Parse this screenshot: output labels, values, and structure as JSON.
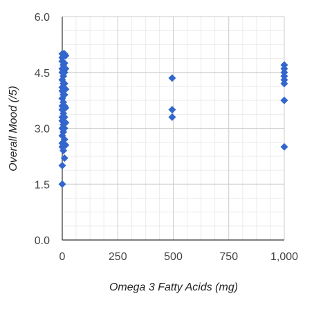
{
  "chart_data": {
    "type": "scatter",
    "title": "",
    "xlabel": "Omega 3 Fatty Acids (mg)",
    "ylabel": "Overall Mood (/5)",
    "xlim": [
      0,
      1000
    ],
    "ylim": [
      0,
      6
    ],
    "x_ticks": [
      "0",
      "250",
      "500",
      "750",
      "1,000"
    ],
    "y_ticks": [
      "0.0",
      "1.5",
      "3.0",
      "4.5",
      "6.0"
    ],
    "grid": true,
    "legend": "none",
    "colors": {
      "marker": "#3366cc",
      "major_grid": "#cccccc",
      "minor_grid": "#ebebeb",
      "axis": "#333333"
    },
    "series": [
      {
        "points": [
          [
            0,
            1.5
          ],
          [
            0,
            2.0
          ],
          [
            0,
            2.5
          ],
          [
            0,
            2.6
          ],
          [
            0,
            2.8
          ],
          [
            0,
            3.0
          ],
          [
            0,
            3.2
          ],
          [
            0,
            3.3
          ],
          [
            0,
            3.5
          ],
          [
            0,
            3.6
          ],
          [
            0,
            3.8
          ],
          [
            0,
            4.0
          ],
          [
            0,
            4.1
          ],
          [
            0,
            4.3
          ],
          [
            0,
            4.5
          ],
          [
            0,
            4.6
          ],
          [
            0,
            4.8
          ],
          [
            0,
            4.9
          ],
          [
            0,
            5.0
          ],
          [
            5,
            2.4
          ],
          [
            5,
            2.9
          ],
          [
            5,
            3.1
          ],
          [
            5,
            3.4
          ],
          [
            5,
            3.7
          ],
          [
            5,
            3.9
          ],
          [
            5,
            4.2
          ],
          [
            5,
            4.4
          ],
          [
            5,
            4.7
          ],
          [
            5,
            5.0
          ],
          [
            10,
            2.2
          ],
          [
            10,
            2.7
          ],
          [
            10,
            3.0
          ],
          [
            10,
            3.3
          ],
          [
            10,
            3.6
          ],
          [
            10,
            3.9
          ],
          [
            10,
            4.2
          ],
          [
            10,
            4.5
          ],
          [
            10,
            4.75
          ],
          [
            10,
            5.0
          ],
          [
            15,
            2.55
          ],
          [
            15,
            3.15
          ],
          [
            15,
            3.55
          ],
          [
            15,
            4.05
          ],
          [
            15,
            4.6
          ],
          [
            15,
            4.95
          ],
          [
            495,
            4.35
          ],
          [
            495,
            3.5
          ],
          [
            495,
            3.3
          ],
          [
            1000,
            4.7
          ],
          [
            1000,
            4.6
          ],
          [
            1000,
            4.5
          ],
          [
            1000,
            4.4
          ],
          [
            1000,
            4.3
          ],
          [
            1000,
            4.2
          ],
          [
            1000,
            3.75
          ],
          [
            1000,
            2.5
          ]
        ]
      }
    ]
  }
}
